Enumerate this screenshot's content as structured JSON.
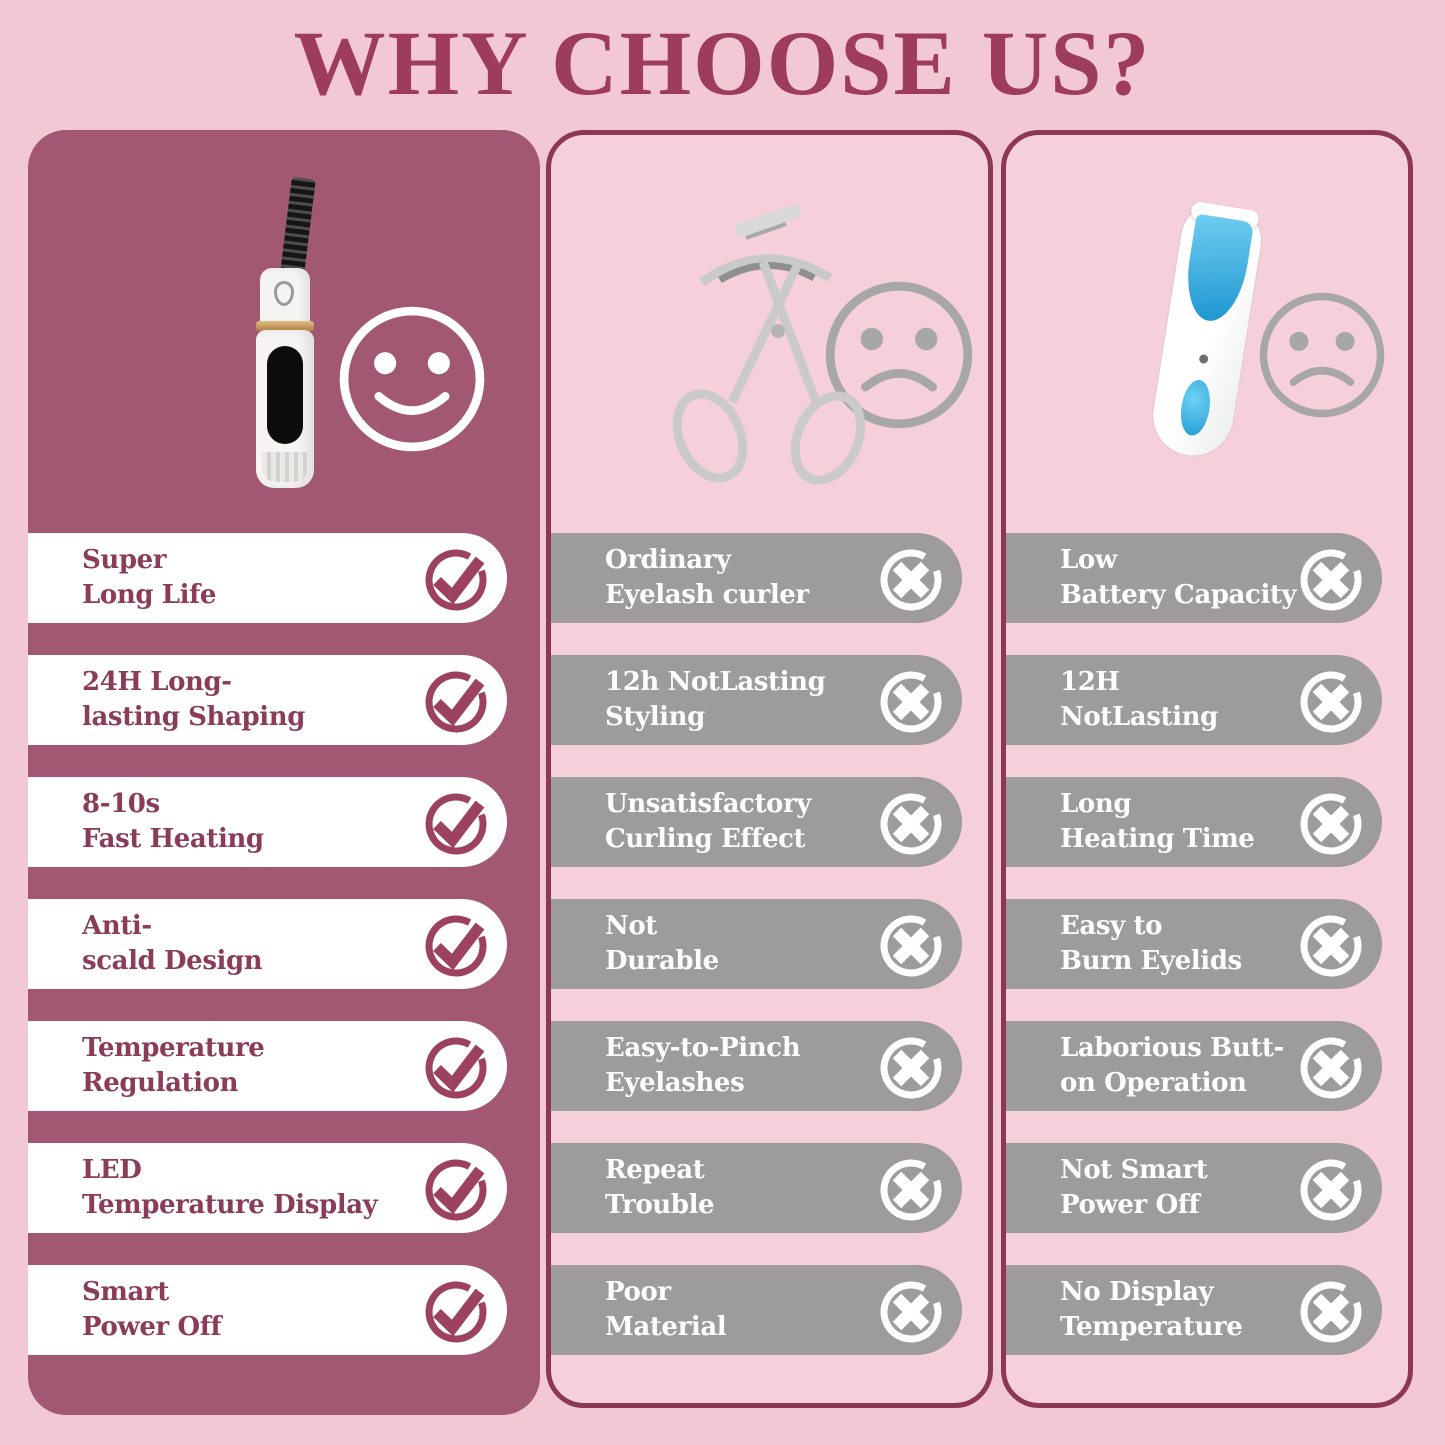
{
  "title": "WHY CHOOSE US?",
  "colors": {
    "background": "#f2c8d5",
    "panel_maroon": "#a25873",
    "panel_pink": "#f5cfda",
    "border_maroon": "#8c3853",
    "title_maroon": "#9d3c5e",
    "pill_text_maroon": "#8b3c59",
    "pill_gray": "#9d9b9c",
    "check_icon_maroon": "#9c4160",
    "face_gray": "#a7a7a7",
    "pill_white": "#ffffff",
    "accent_blue": "#1e9ed8",
    "accent_gold": "#c79b5e"
  },
  "icons": {
    "positive": "check-circle-icon",
    "negative": "x-circle-icon",
    "happy": "smiley-face-icon",
    "sad": "sad-face-icon"
  },
  "columns": {
    "ours": {
      "product": "our-heated-eyelash-curler",
      "mood": "happy",
      "rows": [
        {
          "line1": "Super",
          "line2": "Long Life"
        },
        {
          "line1": "24H Long-",
          "line2": "lasting Shaping"
        },
        {
          "line1": "8-10s",
          "line2": "Fast Heating"
        },
        {
          "line1": "Anti-",
          "line2": "scald Design"
        },
        {
          "line1": "Temperature",
          "line2": "Regulation"
        },
        {
          "line1": "LED",
          "line2": "Temperature Display"
        },
        {
          "line1": "Smart",
          "line2": "Power Off"
        }
      ]
    },
    "ordinary": {
      "product": "ordinary-eyelash-curler",
      "mood": "sad",
      "rows": [
        {
          "line1": "Ordinary",
          "line2": "Eyelash curler"
        },
        {
          "line1": "12h NotLasting",
          "line2": "Styling"
        },
        {
          "line1": "Unsatisfactory",
          "line2": "Curling Effect"
        },
        {
          "line1": "Not",
          "line2": "Durable"
        },
        {
          "line1": "Easy-to-Pinch",
          "line2": "Eyelashes"
        },
        {
          "line1": "Repeat",
          "line2": "Trouble"
        },
        {
          "line1": "Poor",
          "line2": "Material"
        }
      ]
    },
    "other": {
      "product": "other-electric-eyelash-curler",
      "mood": "sad",
      "rows": [
        {
          "line1": "Low",
          "line2": "Battery Capacity"
        },
        {
          "line1": "12H",
          "line2": "NotLasting"
        },
        {
          "line1": "Long",
          "line2": "Heating Time"
        },
        {
          "line1": "Easy to",
          "line2": "Burn Eyelids"
        },
        {
          "line1": "Laborious Butt-",
          "line2": "on Operation"
        },
        {
          "line1": "Not Smart",
          "line2": "Power Off"
        },
        {
          "line1": "No Display",
          "line2": "Temperature"
        }
      ]
    }
  }
}
